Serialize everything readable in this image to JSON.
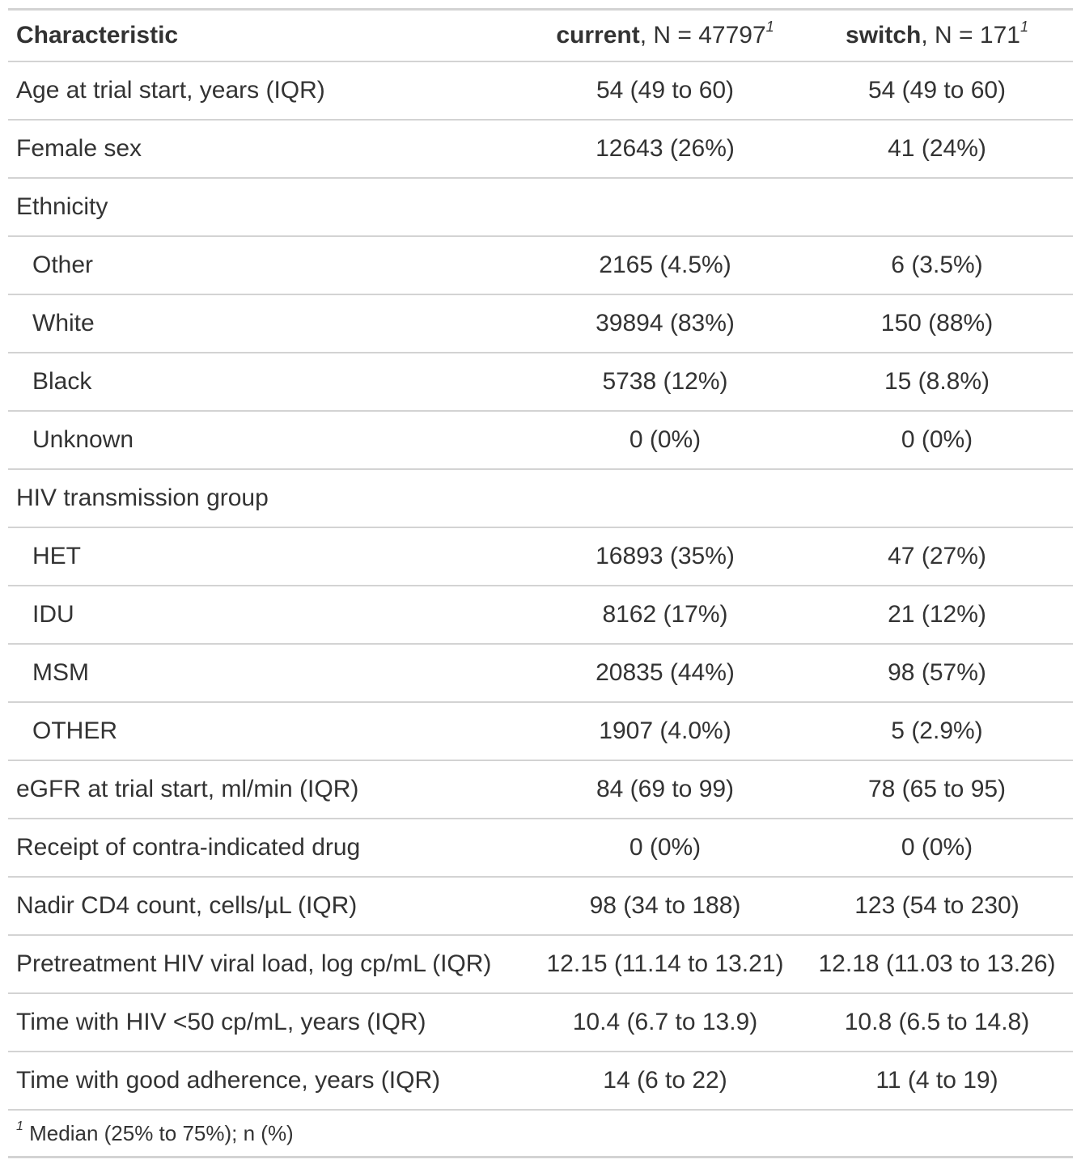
{
  "header": {
    "characteristic": "Characteristic",
    "current_label": "current",
    "current_n": ", N = 47797",
    "switch_label": "switch",
    "switch_n": ", N = 171",
    "footnote_mark": "1"
  },
  "rows": [
    {
      "label": "Age at trial start, years (IQR)",
      "current": "54 (49 to 60)",
      "switch": "54 (49 to 60)"
    },
    {
      "label": "Female sex",
      "current": "12643 (26%)",
      "switch": "41 (24%)"
    },
    {
      "label": "Ethnicity",
      "current": "",
      "switch": ""
    },
    {
      "label": "Other",
      "current": "2165 (4.5%)",
      "switch": "6 (3.5%)"
    },
    {
      "label": "White",
      "current": "39894 (83%)",
      "switch": "150 (88%)"
    },
    {
      "label": "Black",
      "current": "5738 (12%)",
      "switch": "15 (8.8%)"
    },
    {
      "label": "Unknown",
      "current": "0 (0%)",
      "switch": "0 (0%)"
    },
    {
      "label": "HIV transmission group",
      "current": "",
      "switch": ""
    },
    {
      "label": "HET",
      "current": "16893 (35%)",
      "switch": "47 (27%)"
    },
    {
      "label": "IDU",
      "current": "8162 (17%)",
      "switch": "21 (12%)"
    },
    {
      "label": "MSM",
      "current": "20835 (44%)",
      "switch": "98 (57%)"
    },
    {
      "label": "OTHER",
      "current": "1907 (4.0%)",
      "switch": "5 (2.9%)"
    },
    {
      "label": "eGFR at trial start, ml/min (IQR)",
      "current": "84 (69 to 99)",
      "switch": "78 (65 to 95)"
    },
    {
      "label": "Receipt of contra-indicated drug",
      "current": "0 (0%)",
      "switch": "0 (0%)"
    },
    {
      "label": "Nadir CD4 count, cells/µL (IQR)",
      "current": "98 (34 to 188)",
      "switch": "123 (54 to 230)"
    },
    {
      "label": "Pretreatment HIV viral load, log cp/mL (IQR)",
      "current": "12.15 (11.14 to 13.21)",
      "switch": "12.18 (11.03 to 13.26)"
    },
    {
      "label": "Time with HIV <50 cp/mL, years (IQR)",
      "current": "10.4 (6.7 to 13.9)",
      "switch": "10.8 (6.5 to 14.8)"
    },
    {
      "label": "Time with good adherence, years (IQR)",
      "current": "14 (6 to 22)",
      "switch": "11 (4 to 19)"
    }
  ],
  "footnote": {
    "mark": "1",
    "text": " Median (25% to 75%); n (%)"
  }
}
